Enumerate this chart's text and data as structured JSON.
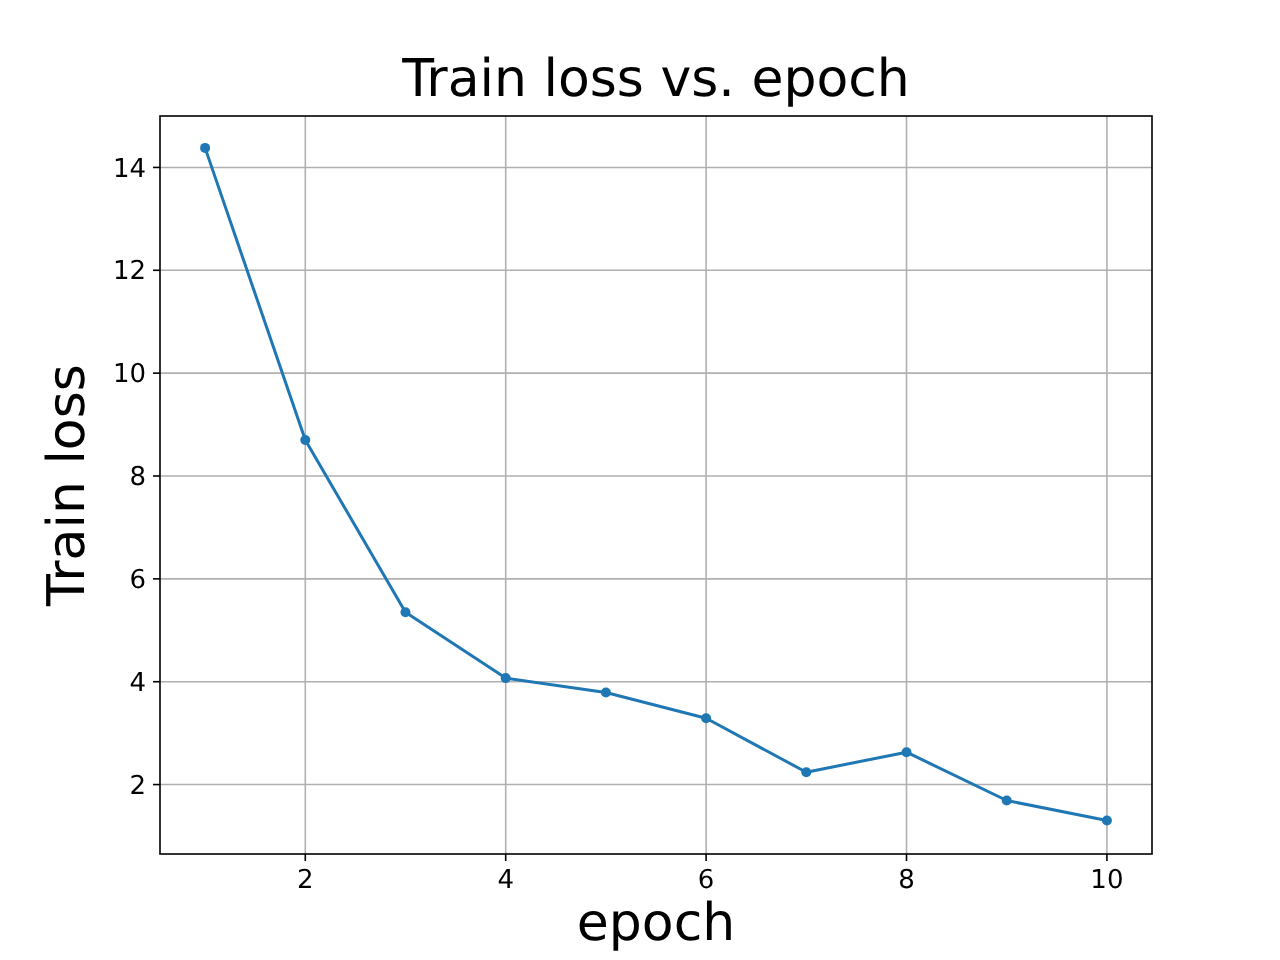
{
  "chart_data": {
    "type": "line",
    "title": "Train loss vs. epoch",
    "xlabel": "epoch",
    "ylabel": "Train loss",
    "x": [
      1,
      2,
      3,
      4,
      5,
      6,
      7,
      8,
      9,
      10
    ],
    "series": [
      {
        "color": "#1f77b4",
        "values": [
          14.38,
          8.7,
          5.35,
          4.07,
          3.79,
          3.29,
          2.24,
          2.63,
          1.69,
          1.3
        ]
      }
    ],
    "xlim": [
      0.55,
      10.45
    ],
    "xticks": [
      2,
      4,
      6,
      8,
      10
    ],
    "ylim": [
      0.65,
      15.0
    ],
    "yticks": [
      2,
      4,
      6,
      8,
      10,
      12,
      14
    ],
    "grid": true,
    "marker": "circle",
    "line_style": "solid"
  }
}
